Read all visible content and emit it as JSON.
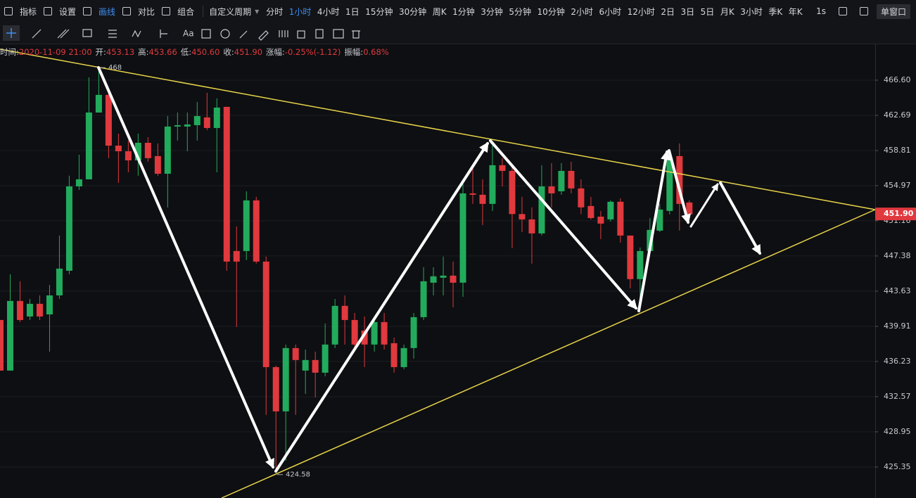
{
  "toolbar": {
    "tools": [
      "指标",
      "设置",
      "画线",
      "对比",
      "组合"
    ],
    "period_menu": "自定义周期",
    "periods": [
      "分时",
      "1小时",
      "4小时",
      "1日",
      "15分钟",
      "30分钟",
      "周K",
      "1分钟",
      "3分钟",
      "5分钟",
      "10分钟",
      "2小时",
      "6小时",
      "12小时",
      "2日",
      "3日",
      "5日",
      "月K",
      "3小时",
      "季K",
      "年K"
    ],
    "active_period": 1,
    "highlight_color": "#3d8ef0",
    "refresh": "1s",
    "window": "单窗口",
    "draw_text_tool": "Aa"
  },
  "info": [
    {
      "label": "时间:",
      "value": "2020-11-09 21:00"
    },
    {
      "label": "开:",
      "value": "453.13"
    },
    {
      "label": "高:",
      "value": "453.66"
    },
    {
      "label": "低:",
      "value": "450.60"
    },
    {
      "label": "收:",
      "value": "451.90"
    },
    {
      "label": "涨幅:",
      "value": "-0.25%(-1.12)"
    },
    {
      "label": "振幅:",
      "value": "0.68%"
    }
  ],
  "chart_data": {
    "type": "candlestick",
    "log_scale": true,
    "grid": true,
    "up_color": "#22ab5c",
    "down_color": "#e0393e",
    "ylim": [
      422.21,
      470.54
    ],
    "yticks": [
      {
        "value": 466.6,
        "label": "466.60"
      },
      462.69,
      458.81,
      454.97,
      451.16,
      447.38,
      443.63,
      439.91,
      436.23,
      432.57,
      428.95,
      425.35
    ],
    "open": [
      440.58,
      435.28,
      442.59,
      440.95,
      442.29,
      441.17,
      443.18,
      445.8,
      454.89,
      455.66,
      463.0,
      464.96,
      459.35,
      458.73,
      457.73,
      459.66,
      458.2,
      456.27,
      461.45,
      461.45,
      461.6,
      462.46,
      461.29,
      463.63,
      447.91,
      447.91,
      453.37,
      446.78,
      435.64,
      431.05,
      437.63,
      435.28,
      436.38,
      435.06,
      438.0,
      442.07,
      440.58,
      439.47,
      438.0,
      440.36,
      438.14,
      435.64,
      437.63,
      440.88,
      444.53,
      445.06,
      445.28,
      444.53,
      454.13,
      453.98,
      452.99,
      457.2,
      456.58,
      451.89,
      451.31,
      449.8,
      454.89,
      454.36,
      456.58,
      454.67,
      452.76,
      451.61,
      451.31,
      453.22,
      449.57,
      444.91,
      447.91,
      450.1,
      452.23,
      458.2,
      453.14
    ],
    "high": [
      440.58,
      445.43,
      444.68,
      442.81,
      443.18,
      444.3,
      449.57,
      456.05,
      458.35,
      466.92,
      467.86,
      465.35,
      460.67,
      459.9,
      460.67,
      460.28,
      459.59,
      462.61,
      463.0,
      463.0,
      464.18,
      465.19,
      464.57,
      463.63,
      450.55,
      454.36,
      453.75,
      447.31,
      435.79,
      438.0,
      438.0,
      437.48,
      437.26,
      440.21,
      442.81,
      443.18,
      441.32,
      440.95,
      440.95,
      441.32,
      438.73,
      438.0,
      441.32,
      446.18,
      446.18,
      447.31,
      446.78,
      455.66,
      456.81,
      455.66,
      459.51,
      457.97,
      457.2,
      453.75,
      452.61,
      457.2,
      457.43,
      457.43,
      457.58,
      455.66,
      453.75,
      452.23,
      453.37,
      453.6,
      449.57,
      448.29,
      451.46,
      452.99,
      458.73,
      459.59,
      453.37
    ],
    "low": [
      435.28,
      435.28,
      440.36,
      440.58,
      440.58,
      437.26,
      442.81,
      445.43,
      454.51,
      455.66,
      463.0,
      457.97,
      455.27,
      456.43,
      456.05,
      457.58,
      456.05,
      452.61,
      459.9,
      458.73,
      459.9,
      461.06,
      456.43,
      445.8,
      439.84,
      446.93,
      446.56,
      430.69,
      424.92,
      426.0,
      430.69,
      432.86,
      432.5,
      434.69,
      437.63,
      438.0,
      437.26,
      435.64,
      437.26,
      437.48,
      435.06,
      435.42,
      436.52,
      440.58,
      443.18,
      443.18,
      441.92,
      443.03,
      452.99,
      450.71,
      452.23,
      454.89,
      448.22,
      449.95,
      446.56,
      449.57,
      452.61,
      453.98,
      454.13,
      451.89,
      451.31,
      449.19,
      451.08,
      448.82,
      443.93,
      442.81,
      447.69,
      449.95,
      451.85,
      450.1,
      451.46
    ],
    "close": [
      435.28,
      442.59,
      440.58,
      442.29,
      440.95,
      443.18,
      446.03,
      454.89,
      455.66,
      463.0,
      464.96,
      459.35,
      458.73,
      457.73,
      459.66,
      457.97,
      456.27,
      461.45,
      461.6,
      461.68,
      462.61,
      461.29,
      463.55,
      446.78,
      446.78,
      453.37,
      446.78,
      435.64,
      431.05,
      437.63,
      436.38,
      436.38,
      435.06,
      438.0,
      442.07,
      440.58,
      438.0,
      438.0,
      440.36,
      438.0,
      435.64,
      437.63,
      440.88,
      444.68,
      445.21,
      445.28,
      444.53,
      454.13,
      453.98,
      452.99,
      457.2,
      456.58,
      451.89,
      451.31,
      449.8,
      454.89,
      454.13,
      456.58,
      454.67,
      452.61,
      451.46,
      450.86,
      453.22,
      449.57,
      444.91,
      447.91,
      450.18,
      452.38,
      457.97,
      452.99,
      451.85
    ],
    "annotations": [
      {
        "value": 468,
        "label": "468"
      },
      {
        "value": 424.58,
        "label": "424.58"
      }
    ],
    "last_price": {
      "value": 451.9,
      "label": "451.90"
    }
  }
}
